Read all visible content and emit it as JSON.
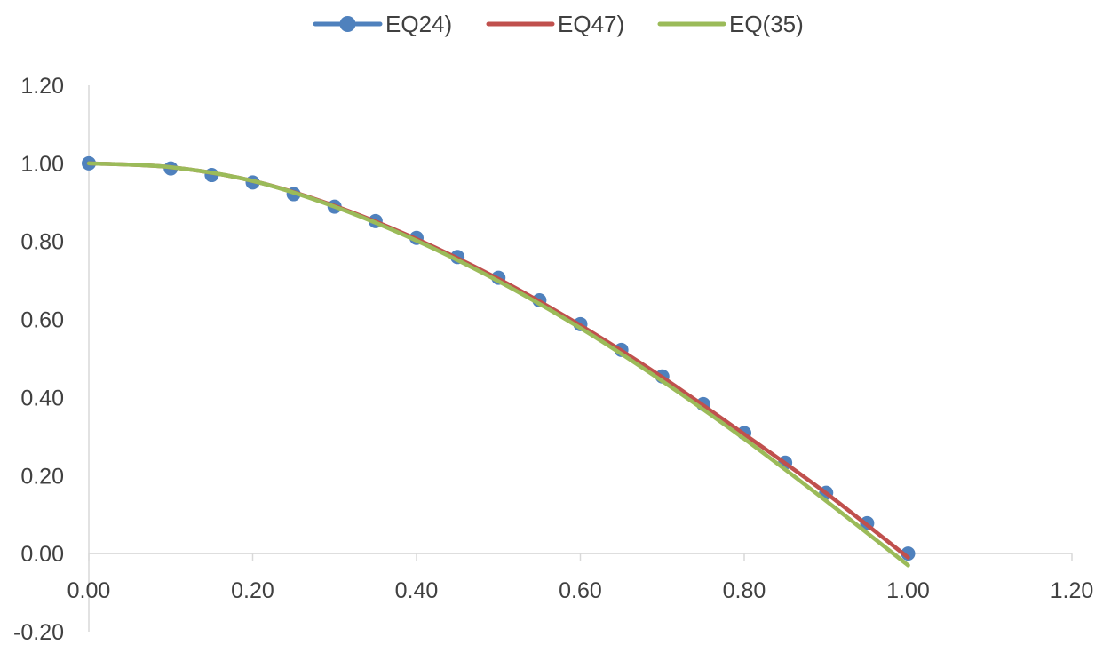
{
  "chart_data": {
    "type": "line",
    "title": "",
    "xlabel": "",
    "ylabel": "",
    "xlim": [
      0.0,
      1.2
    ],
    "ylim": [
      -0.2,
      1.2
    ],
    "x_ticks": [
      0.0,
      0.2,
      0.4,
      0.6,
      0.8,
      1.0,
      1.2
    ],
    "x_tick_labels": [
      "0.00",
      "0.20",
      "0.40",
      "0.60",
      "0.80",
      "1.00",
      "1.20"
    ],
    "y_ticks": [
      -0.2,
      0.0,
      0.2,
      0.4,
      0.6,
      0.8,
      1.0,
      1.2
    ],
    "y_tick_labels": [
      "-0.20",
      "0.00",
      "0.20",
      "0.40",
      "0.60",
      "0.80",
      "1.00",
      "1.20"
    ],
    "grid": false,
    "legend_position": "top",
    "series": [
      {
        "name": "EQ24)",
        "color": "#4F81BD",
        "style": "line-with-markers",
        "x": [
          0.0,
          0.1,
          0.15,
          0.2,
          0.25,
          0.3,
          0.35,
          0.4,
          0.45,
          0.5,
          0.55,
          0.6,
          0.65,
          0.7,
          0.75,
          0.8,
          0.85,
          0.9,
          0.95,
          1.0
        ],
        "y": [
          1.0,
          0.987,
          0.97,
          0.951,
          0.921,
          0.889,
          0.852,
          0.809,
          0.76,
          0.707,
          0.649,
          0.588,
          0.522,
          0.454,
          0.383,
          0.309,
          0.233,
          0.156,
          0.078,
          0.0
        ]
      },
      {
        "name": "EQ47)",
        "color": "#C0504D",
        "style": "line",
        "x": [
          0.0,
          0.1,
          0.2,
          0.3,
          0.4,
          0.5,
          0.6,
          0.7,
          0.8,
          0.9,
          1.0
        ],
        "y": [
          1.0,
          0.99,
          0.955,
          0.891,
          0.806,
          0.704,
          0.585,
          0.452,
          0.306,
          0.155,
          -0.01
        ]
      },
      {
        "name": "EQ(35)",
        "color": "#9BBB59",
        "style": "line",
        "x": [
          0.0,
          0.1,
          0.2,
          0.3,
          0.4,
          0.5,
          0.6,
          0.7,
          0.8,
          0.9,
          1.0
        ],
        "y": [
          1.0,
          0.99,
          0.955,
          0.889,
          0.802,
          0.698,
          0.578,
          0.442,
          0.294,
          0.135,
          -0.03
        ]
      }
    ]
  }
}
